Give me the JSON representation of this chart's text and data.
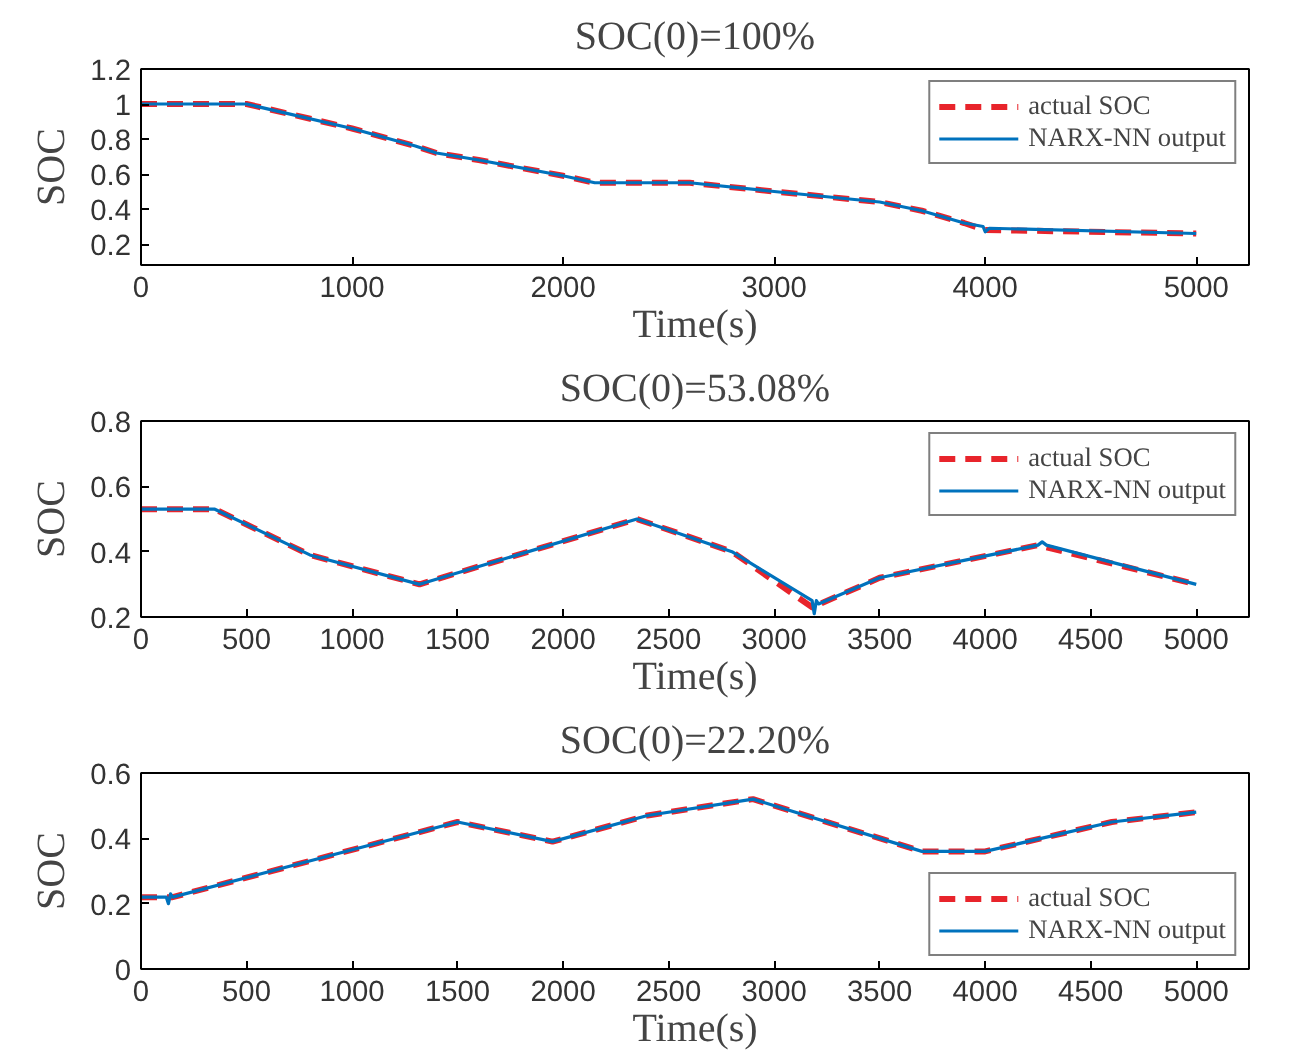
{
  "chart_data": [
    {
      "type": "line",
      "title": "SOC(0)=100%",
      "xlabel": "Time(s)",
      "ylabel": "SOC",
      "xlim": [
        0,
        5250
      ],
      "ylim": [
        0.08,
        1.2
      ],
      "xticks": [
        0,
        1000,
        2000,
        3000,
        4000,
        5000
      ],
      "yticks": [
        0.2,
        0.4,
        0.6,
        0.8,
        1,
        1.2
      ],
      "grid": false,
      "legend": "top right",
      "series": [
        {
          "name": "actual SOC",
          "color": "#e8242b",
          "line_style": "dashed",
          "x": [
            0,
            500,
            1000,
            1300,
            1400,
            1600,
            2000,
            2150,
            2600,
            3000,
            3500,
            3700,
            3900,
            4000,
            5000
          ],
          "values": [
            1,
            1,
            0.86,
            0.76,
            0.72,
            0.68,
            0.59,
            0.55,
            0.55,
            0.5,
            0.44,
            0.39,
            0.32,
            0.28,
            0.26
          ]
        },
        {
          "name": "NARX-NN output",
          "color": "#0072bd",
          "line_style": "solid",
          "x": [
            0,
            500,
            1000,
            1300,
            1400,
            1600,
            2000,
            2150,
            2600,
            3000,
            3500,
            3700,
            3900,
            3990,
            4000,
            4020,
            5000
          ],
          "values": [
            1,
            1,
            0.86,
            0.76,
            0.72,
            0.68,
            0.59,
            0.55,
            0.55,
            0.5,
            0.44,
            0.39,
            0.32,
            0.3,
            0.27,
            0.29,
            0.26
          ]
        }
      ]
    },
    {
      "type": "line",
      "title": "SOC(0)=53.08%",
      "xlabel": "Time(s)",
      "ylabel": "SOC",
      "xlim": [
        0,
        5250
      ],
      "ylim": [
        0.2,
        0.8
      ],
      "xticks": [
        0,
        500,
        1000,
        1500,
        2000,
        2500,
        3000,
        3500,
        4000,
        4500,
        5000
      ],
      "yticks": [
        0.2,
        0.4,
        0.6,
        0.8
      ],
      "grid": false,
      "legend": "top right",
      "series": [
        {
          "name": "actual SOC",
          "color": "#e8242b",
          "line_style": "dashed",
          "x": [
            0,
            350,
            800,
            1320,
            2350,
            2800,
            3180,
            3500,
            4250,
            5000
          ],
          "values": [
            0.53,
            0.53,
            0.39,
            0.3,
            0.5,
            0.4,
            0.23,
            0.32,
            0.42,
            0.3
          ]
        },
        {
          "name": "NARX-NN output",
          "color": "#0072bd",
          "line_style": "solid",
          "x": [
            0,
            350,
            800,
            1320,
            2350,
            2800,
            3180,
            3190,
            3200,
            3210,
            3500,
            4250,
            4270,
            4290,
            5000
          ],
          "values": [
            0.53,
            0.53,
            0.39,
            0.3,
            0.5,
            0.4,
            0.25,
            0.21,
            0.25,
            0.24,
            0.32,
            0.42,
            0.43,
            0.42,
            0.3
          ]
        }
      ]
    },
    {
      "type": "line",
      "title": "SOC(0)=22.20%",
      "xlabel": "Time(s)",
      "ylabel": "SOC",
      "xlim": [
        0,
        5250
      ],
      "ylim": [
        0,
        0.6
      ],
      "xticks": [
        0,
        500,
        1000,
        1500,
        2000,
        2500,
        3000,
        3500,
        4000,
        4500,
        5000
      ],
      "yticks": [
        0,
        0.2,
        0.4,
        0.6
      ],
      "grid": false,
      "legend": "bottom right",
      "series": [
        {
          "name": "actual SOC",
          "color": "#e8242b",
          "line_style": "dashed",
          "x": [
            0,
            150,
            1500,
            1950,
            2400,
            2900,
            3700,
            4000,
            4600,
            5000
          ],
          "values": [
            0.22,
            0.22,
            0.45,
            0.39,
            0.47,
            0.52,
            0.36,
            0.36,
            0.45,
            0.48
          ]
        },
        {
          "name": "NARX-NN output",
          "color": "#0072bd",
          "line_style": "solid",
          "x": [
            0,
            120,
            130,
            140,
            150,
            1500,
            1950,
            2400,
            2900,
            3700,
            4000,
            4600,
            5000
          ],
          "values": [
            0.22,
            0.22,
            0.2,
            0.23,
            0.22,
            0.45,
            0.39,
            0.47,
            0.52,
            0.36,
            0.36,
            0.45,
            0.48
          ]
        }
      ]
    }
  ]
}
